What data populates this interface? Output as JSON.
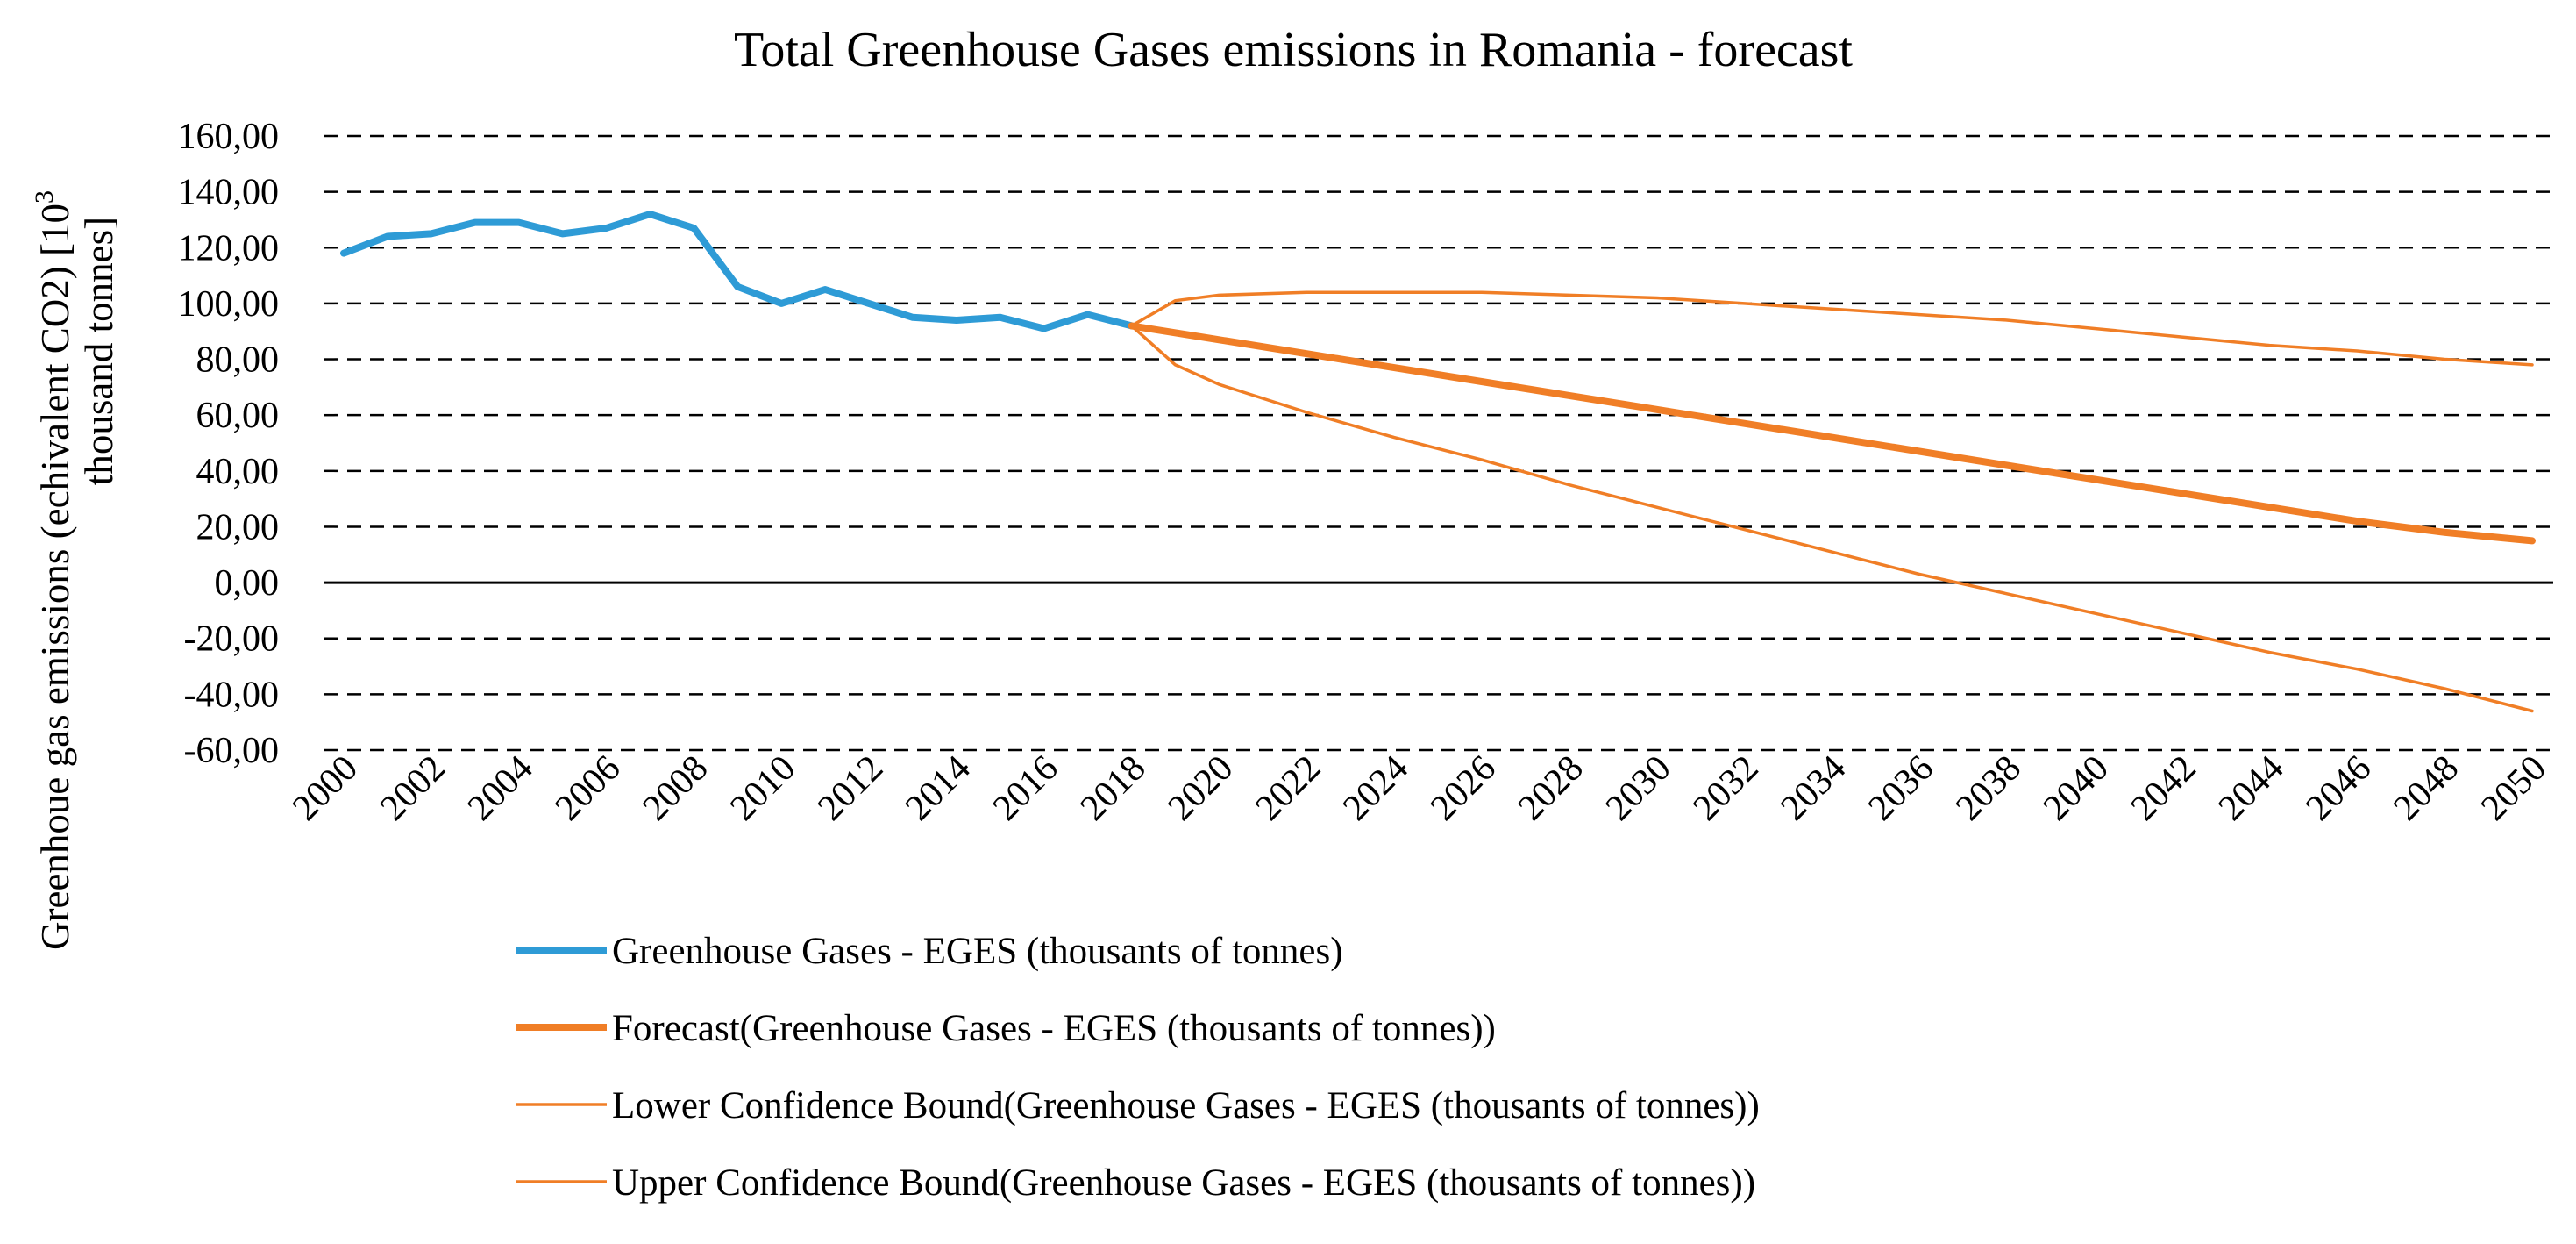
{
  "chart_data": {
    "type": "line",
    "title": "Total Greenhouse Gases emissions in Romania - forecast",
    "ylabel_line1": "Greenhoue gas emissions (echivalent CO2) [10",
    "ylabel_sup": "3",
    "ylabel_line2": "thousand tonnes]",
    "xlabel": "",
    "ylim": [
      -60,
      160
    ],
    "y_ticks": [
      160,
      140,
      120,
      100,
      80,
      60,
      40,
      20,
      0,
      -20,
      -40,
      -60
    ],
    "y_tick_labels": [
      "160,00",
      "140,00",
      "120,00",
      "100,00",
      "80,00",
      "60,00",
      "40,00",
      "20,00",
      "0,00",
      "-20,00",
      "-40,00",
      "-60,00"
    ],
    "x_range": [
      2000,
      2050
    ],
    "x_tick_labels": [
      "2000",
      "2002",
      "2004",
      "2006",
      "2008",
      "2010",
      "2012",
      "2014",
      "2016",
      "2018",
      "2020",
      "2022",
      "2024",
      "2026",
      "2028",
      "2030",
      "2032",
      "2034",
      "2036",
      "2038",
      "2040",
      "2042",
      "2044",
      "2046",
      "2048",
      "2050"
    ],
    "grid": "horizontal dashed",
    "legend_position": "bottom",
    "series": [
      {
        "name": "Greenhouse Gases - EGES (thousants of tonnes)",
        "color": "#2E9BD6",
        "weight": "thick",
        "x": [
          2000,
          2001,
          2002,
          2003,
          2004,
          2005,
          2006,
          2007,
          2008,
          2009,
          2010,
          2011,
          2012,
          2013,
          2014,
          2015,
          2016,
          2017,
          2018
        ],
        "y": [
          118,
          124,
          125,
          129,
          129,
          125,
          127,
          132,
          127,
          106,
          100,
          105,
          100,
          95,
          94,
          95,
          91,
          96,
          92
        ]
      },
      {
        "name": "Forecast(Greenhouse Gases - EGES (thousants of tonnes))",
        "color": "#F07E26",
        "weight": "thick",
        "x": [
          2018,
          2020,
          2022,
          2024,
          2026,
          2028,
          2030,
          2032,
          2034,
          2036,
          2038,
          2040,
          2042,
          2044,
          2046,
          2048,
          2050
        ],
        "y": [
          92,
          87,
          82,
          77,
          72,
          67,
          62,
          57,
          52,
          47,
          42,
          37,
          32,
          27,
          22,
          18,
          15
        ]
      },
      {
        "name": "Lower Confidence Bound(Greenhouse Gases - EGES (thousants of tonnes))",
        "color": "#F07E26",
        "weight": "thin",
        "x": [
          2018,
          2019,
          2020,
          2022,
          2024,
          2026,
          2028,
          2030,
          2032,
          2034,
          2036,
          2038,
          2040,
          2042,
          2044,
          2046,
          2048,
          2050
        ],
        "y": [
          92,
          78,
          71,
          61,
          52,
          44,
          35,
          27,
          19,
          11,
          3,
          -4,
          -11,
          -18,
          -25,
          -31,
          -38,
          -46
        ]
      },
      {
        "name": "Upper Confidence Bound(Greenhouse Gases - EGES (thousants of tonnes))",
        "color": "#F07E26",
        "weight": "thin",
        "x": [
          2018,
          2019,
          2020,
          2022,
          2024,
          2026,
          2028,
          2030,
          2032,
          2034,
          2036,
          2038,
          2040,
          2042,
          2044,
          2046,
          2048,
          2050
        ],
        "y": [
          92,
          101,
          103,
          104,
          104,
          104,
          103,
          102,
          100,
          98,
          96,
          94,
          91,
          88,
          85,
          83,
          80,
          78
        ]
      }
    ]
  }
}
